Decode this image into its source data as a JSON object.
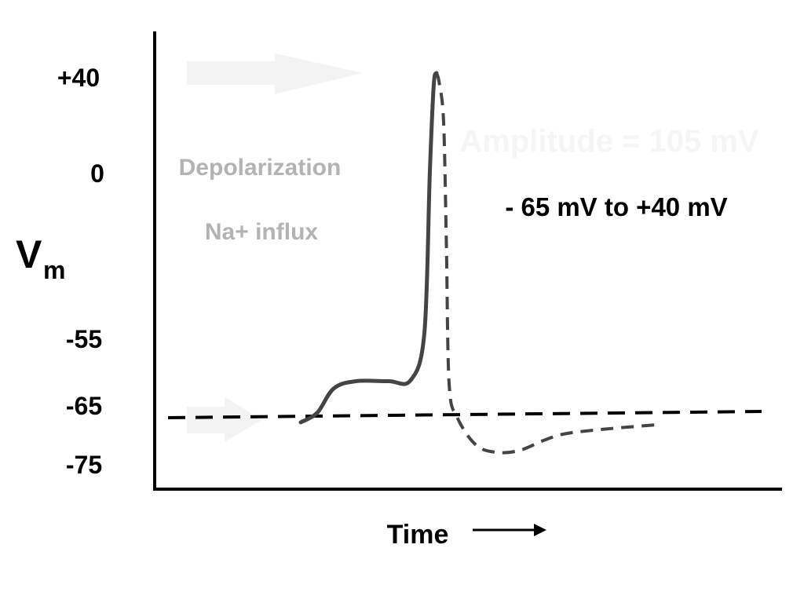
{
  "chart_data": {
    "type": "line",
    "ylabel": {
      "main": "V",
      "sub": "m"
    },
    "xlabel": "Time",
    "y_ticks": [
      "+40",
      "0",
      "-55",
      "-65",
      "-75"
    ],
    "y_tick_values": [
      40,
      0,
      -55,
      -65,
      -75
    ],
    "series": [
      {
        "style": "solid",
        "points": [
          [
            0.0,
            -66
          ],
          [
            0.3,
            -64
          ],
          [
            0.6,
            -59
          ],
          [
            1.0,
            -57.5
          ],
          [
            1.6,
            -57.5
          ],
          [
            2.0,
            -57.3
          ],
          [
            2.25,
            -45
          ],
          [
            2.35,
            0
          ],
          [
            2.42,
            35
          ],
          [
            2.47,
            40
          ]
        ]
      },
      {
        "style": "dashed",
        "points": [
          [
            2.47,
            40
          ],
          [
            2.52,
            36
          ],
          [
            2.6,
            20
          ],
          [
            2.65,
            -20
          ],
          [
            2.7,
            -58
          ],
          [
            2.85,
            -65
          ],
          [
            3.2,
            -71
          ],
          [
            3.6,
            -72.5
          ],
          [
            4.0,
            -72
          ],
          [
            4.4,
            -70
          ],
          [
            4.8,
            -68.5
          ],
          [
            5.5,
            -67.5
          ],
          [
            6.5,
            -66.5
          ]
        ]
      }
    ],
    "resting_line_value": -66,
    "annotations": {
      "depolarization": "Depolarization",
      "influx": "Na+ influx",
      "amplitude": "Amplitude  = 105 mV",
      "range": "- 65 mV to +40 mV"
    },
    "colors": {
      "trace": "#444444",
      "baseline": "#000000",
      "annotation_gray": "#b3b3b3",
      "faint": "#f3f3f3"
    }
  }
}
